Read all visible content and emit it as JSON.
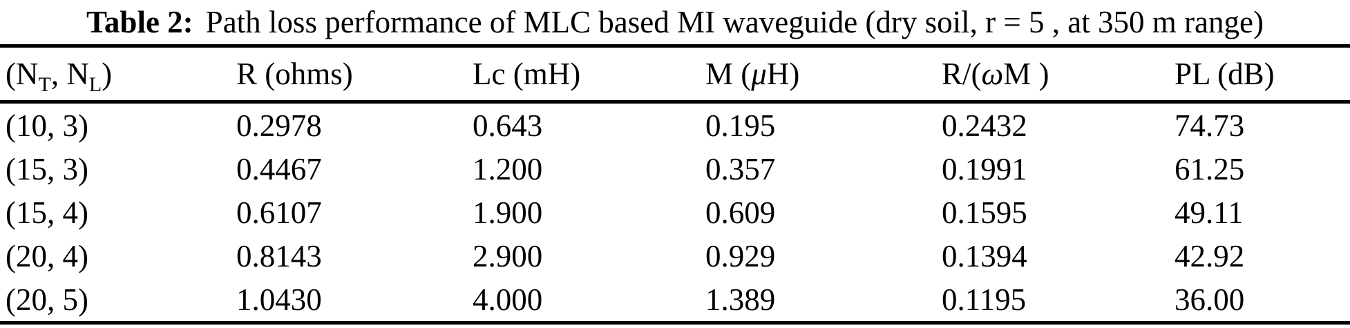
{
  "caption": {
    "label": "Table 2:",
    "text": "Path loss performance of MLC based MI waveguide (dry soil, r = 5 , at 350 m range)"
  },
  "table": {
    "headers": [
      {
        "name": "nt-nl",
        "segments": [
          {
            "t": "(N"
          },
          {
            "t": "T",
            "sub": true
          },
          {
            "t": ", N"
          },
          {
            "t": "L",
            "sub": true
          },
          {
            "t": ")"
          }
        ]
      },
      {
        "name": "r-ohms",
        "segments": [
          {
            "t": "R (ohms)"
          }
        ]
      },
      {
        "name": "lc-mh",
        "segments": [
          {
            "t": "Lc (mH)"
          }
        ]
      },
      {
        "name": "m-uh",
        "segments": [
          {
            "t": "M ("
          },
          {
            "t": "μ",
            "italic": true
          },
          {
            "t": "H)"
          }
        ]
      },
      {
        "name": "r-over-wm",
        "segments": [
          {
            "t": "R/("
          },
          {
            "t": "ω",
            "italic": true
          },
          {
            "t": "M )"
          }
        ]
      },
      {
        "name": "pl-db",
        "segments": [
          {
            "t": "PL (dB)"
          }
        ]
      }
    ],
    "rows": [
      [
        "(10, 3)",
        "0.2978",
        "0.643",
        "0.195",
        "0.2432",
        "74.73"
      ],
      [
        "(15, 3)",
        "0.4467",
        "1.200",
        "0.357",
        "0.1991",
        "61.25"
      ],
      [
        "(15, 4)",
        "0.6107",
        "1.900",
        "0.609",
        "0.1595",
        "49.11"
      ],
      [
        "(20, 4)",
        "0.8143",
        "2.900",
        "0.929",
        "0.1394",
        "42.92"
      ],
      [
        "(20, 5)",
        "1.0430",
        "4.000",
        "1.389",
        "0.1195",
        "36.00"
      ]
    ]
  },
  "chart_data": {
    "type": "table",
    "title": "Table 2: Path loss performance of MLC based MI waveguide (dry soil, r = 5 , at 350 m range)",
    "columns": [
      "(N_T, N_L)",
      "R (ohms)",
      "Lc (mH)",
      "M (uH)",
      "R/(wM )",
      "PL (dB)"
    ],
    "rows": [
      [
        "(10, 3)",
        0.2978,
        0.643,
        0.195,
        0.2432,
        74.73
      ],
      [
        "(15, 3)",
        0.4467,
        1.2,
        0.357,
        0.1991,
        61.25
      ],
      [
        "(15, 4)",
        0.6107,
        1.9,
        0.609,
        0.1595,
        49.11
      ],
      [
        "(20, 4)",
        0.8143,
        2.9,
        0.929,
        0.1394,
        42.92
      ],
      [
        "(20, 5)",
        1.043,
        4.0,
        1.389,
        0.1195,
        36.0
      ]
    ]
  },
  "colors": {
    "text": "#000000",
    "background": "#ffffff",
    "rule": "#000000"
  }
}
